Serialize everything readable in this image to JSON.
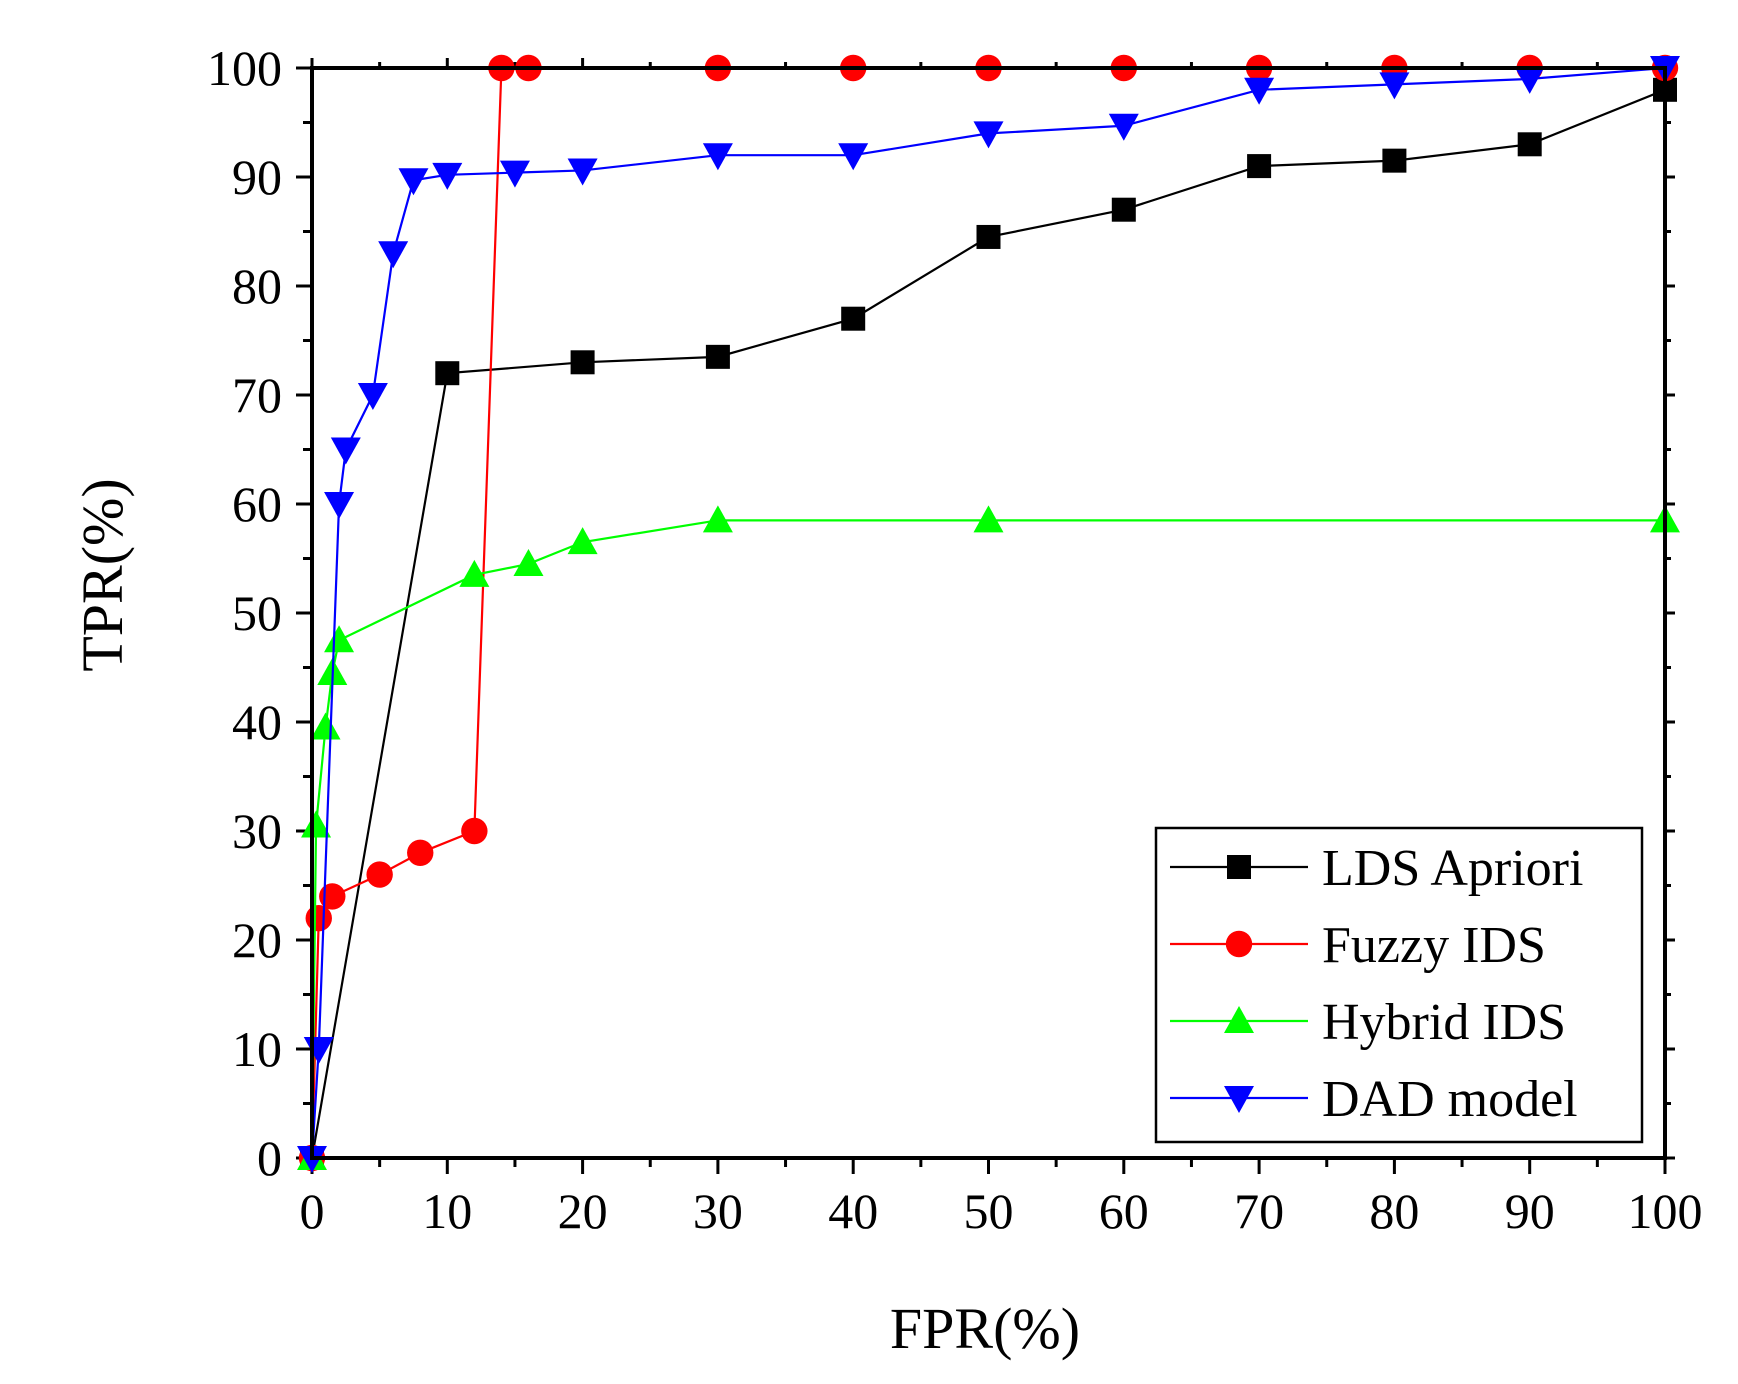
{
  "chart_data": {
    "type": "line",
    "title": "",
    "xlabel": "FPR(%)",
    "ylabel": "TPR(%)",
    "xlim": [
      0,
      100
    ],
    "ylim": [
      0,
      100
    ],
    "xticks": [
      "0",
      "10",
      "20",
      "30",
      "40",
      "50",
      "60",
      "70",
      "80",
      "90",
      "100"
    ],
    "yticks": [
      "0",
      "10",
      "20",
      "30",
      "40",
      "50",
      "60",
      "70",
      "80",
      "90",
      "100"
    ],
    "legend_position": "bottom-right",
    "grid": false,
    "series": [
      {
        "name": "LDS Apriori",
        "color": "#000000",
        "marker": "square",
        "points": [
          [
            0,
            0
          ],
          [
            10,
            72
          ],
          [
            20,
            73
          ],
          [
            30,
            73.5
          ],
          [
            40,
            77
          ],
          [
            50,
            84.5
          ],
          [
            60,
            87
          ],
          [
            70,
            91
          ],
          [
            80,
            91.5
          ],
          [
            90,
            93
          ],
          [
            100,
            98
          ]
        ]
      },
      {
        "name": "Fuzzy IDS",
        "color": "#ff0000",
        "marker": "circle",
        "points": [
          [
            0,
            0
          ],
          [
            0.5,
            22
          ],
          [
            1.5,
            24
          ],
          [
            5,
            26
          ],
          [
            8,
            28
          ],
          [
            12,
            30
          ],
          [
            14,
            100
          ],
          [
            16,
            100
          ],
          [
            30,
            100
          ],
          [
            40,
            100
          ],
          [
            50,
            100
          ],
          [
            60,
            100
          ],
          [
            70,
            100
          ],
          [
            80,
            100
          ],
          [
            90,
            100
          ],
          [
            100,
            100
          ]
        ]
      },
      {
        "name": "Hybrid IDS",
        "color": "#00ff00",
        "marker": "triangle-up",
        "points": [
          [
            0,
            0
          ],
          [
            0.3,
            30.5
          ],
          [
            1,
            39.5
          ],
          [
            1.5,
            44.5
          ],
          [
            2,
            47.5
          ],
          [
            12,
            53.5
          ],
          [
            16,
            54.5
          ],
          [
            20,
            56.5
          ],
          [
            30,
            58.5
          ],
          [
            50,
            58.5
          ],
          [
            100,
            58.5
          ]
        ]
      },
      {
        "name": "DAD model",
        "color": "#0000ff",
        "marker": "triangle-down",
        "points": [
          [
            0,
            0
          ],
          [
            0.5,
            10
          ],
          [
            2,
            60
          ],
          [
            2.5,
            65
          ],
          [
            4.5,
            70
          ],
          [
            6,
            83
          ],
          [
            7.5,
            89.7
          ],
          [
            10,
            90.2
          ],
          [
            15,
            90.4
          ],
          [
            20,
            90.6
          ],
          [
            30,
            92
          ],
          [
            40,
            92
          ],
          [
            50,
            94
          ],
          [
            60,
            94.7
          ],
          [
            70,
            98
          ],
          [
            80,
            98.5
          ],
          [
            90,
            99
          ],
          [
            100,
            100
          ]
        ]
      }
    ]
  }
}
